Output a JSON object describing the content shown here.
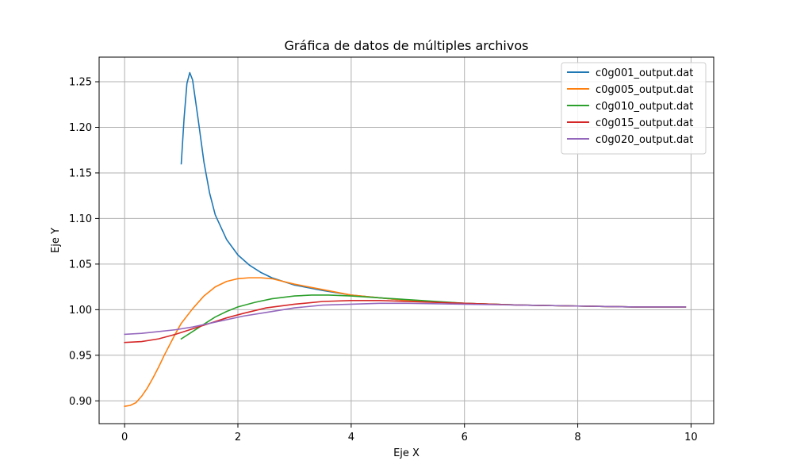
{
  "chart_data": {
    "type": "line",
    "title": "Gráfica de datos de múltiples archivos",
    "xlabel": "Eje X",
    "ylabel": "Eje Y",
    "xlim": [
      -0.45,
      10.4
    ],
    "ylim": [
      0.875,
      1.277
    ],
    "xticks": [
      0,
      2,
      4,
      6,
      8,
      10
    ],
    "xtick_labels": [
      "0",
      "2",
      "4",
      "6",
      "8",
      "10"
    ],
    "yticks": [
      0.9,
      0.95,
      1.0,
      1.05,
      1.1,
      1.15,
      1.2,
      1.25
    ],
    "ytick_labels": [
      "0.90",
      "0.95",
      "1.00",
      "1.05",
      "1.10",
      "1.15",
      "1.20",
      "1.25"
    ],
    "grid": true,
    "legend_position": "top-right",
    "series": [
      {
        "name": "c0g001_output.dat",
        "color": "#1f77b4",
        "x": [
          1.0,
          1.05,
          1.1,
          1.15,
          1.2,
          1.3,
          1.4,
          1.5,
          1.6,
          1.8,
          2.0,
          2.2,
          2.4,
          2.6,
          2.8,
          3.0,
          3.5,
          4.0,
          5.0,
          6.0,
          7.0,
          8.0,
          9.0,
          9.9
        ],
        "y": [
          1.16,
          1.21,
          1.248,
          1.26,
          1.252,
          1.208,
          1.162,
          1.128,
          1.104,
          1.077,
          1.06,
          1.049,
          1.041,
          1.035,
          1.031,
          1.027,
          1.021,
          1.016,
          1.01,
          1.007,
          1.005,
          1.004,
          1.003,
          1.003
        ]
      },
      {
        "name": "c0g005_output.dat",
        "color": "#ff7f0e",
        "x": [
          0.0,
          0.1,
          0.2,
          0.3,
          0.4,
          0.5,
          0.6,
          0.7,
          0.8,
          0.9,
          1.0,
          1.2,
          1.4,
          1.6,
          1.8,
          2.0,
          2.2,
          2.4,
          2.6,
          2.8,
          3.0,
          3.5,
          4.0,
          5.0,
          6.0,
          7.0,
          8.0,
          9.0,
          9.9
        ],
        "y": [
          0.894,
          0.895,
          0.898,
          0.905,
          0.914,
          0.925,
          0.937,
          0.95,
          0.962,
          0.974,
          0.985,
          1.001,
          1.015,
          1.025,
          1.031,
          1.034,
          1.035,
          1.035,
          1.034,
          1.031,
          1.028,
          1.022,
          1.016,
          1.01,
          1.007,
          1.005,
          1.004,
          1.003,
          1.003
        ]
      },
      {
        "name": "c0g010_output.dat",
        "color": "#2ca02c",
        "x": [
          1.0,
          1.2,
          1.4,
          1.6,
          1.8,
          2.0,
          2.3,
          2.6,
          3.0,
          3.3,
          3.6,
          4.0,
          4.5,
          5.0,
          6.0,
          7.0,
          8.0,
          9.0,
          9.9
        ],
        "y": [
          0.968,
          0.976,
          0.984,
          0.992,
          0.998,
          1.003,
          1.008,
          1.012,
          1.015,
          1.016,
          1.016,
          1.015,
          1.013,
          1.011,
          1.007,
          1.005,
          1.004,
          1.003,
          1.003
        ]
      },
      {
        "name": "c0g015_output.dat",
        "color": "#d62728",
        "x": [
          0.0,
          0.3,
          0.6,
          0.9,
          1.2,
          1.5,
          1.8,
          2.1,
          2.5,
          3.0,
          3.5,
          4.0,
          4.5,
          5.0,
          6.0,
          7.0,
          8.0,
          9.0,
          9.9
        ],
        "y": [
          0.964,
          0.965,
          0.968,
          0.973,
          0.979,
          0.985,
          0.991,
          0.996,
          1.002,
          1.006,
          1.009,
          1.01,
          1.01,
          1.009,
          1.007,
          1.005,
          1.004,
          1.003,
          1.003
        ]
      },
      {
        "name": "c0g020_output.dat",
        "color": "#9467bd",
        "x": [
          0.0,
          0.3,
          0.6,
          0.9,
          1.2,
          1.5,
          1.8,
          2.1,
          2.5,
          3.0,
          3.5,
          4.0,
          4.5,
          5.0,
          6.0,
          7.0,
          8.0,
          9.0,
          9.9
        ],
        "y": [
          0.973,
          0.974,
          0.976,
          0.978,
          0.981,
          0.985,
          0.989,
          0.993,
          0.997,
          1.002,
          1.005,
          1.006,
          1.007,
          1.007,
          1.006,
          1.005,
          1.004,
          1.003,
          1.003
        ]
      }
    ]
  }
}
